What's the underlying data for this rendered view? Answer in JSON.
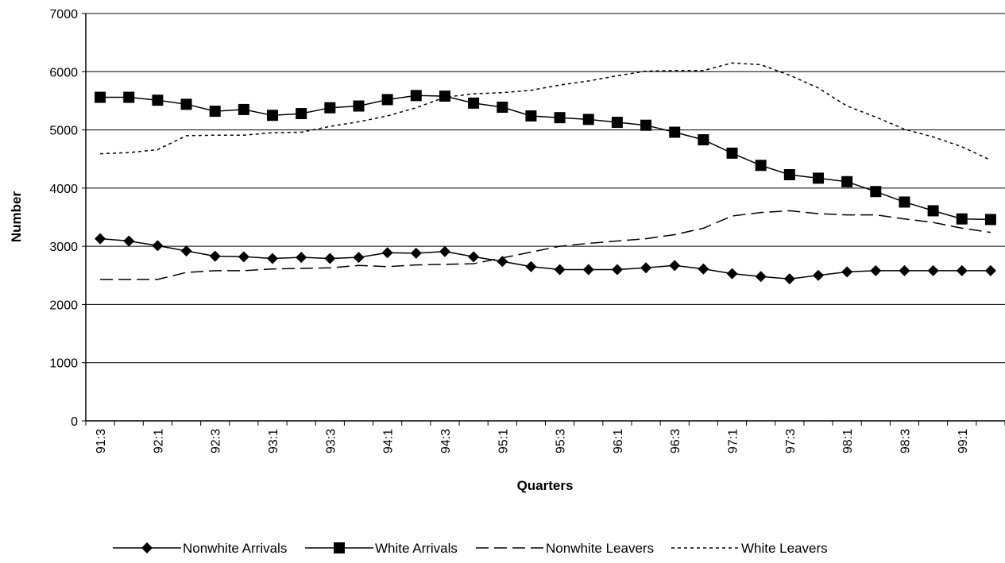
{
  "chart_data": {
    "type": "line",
    "title": "",
    "xlabel": "Quarters",
    "ylabel": "Number",
    "ylim": [
      0,
      7000
    ],
    "yticks": [
      0,
      1000,
      2000,
      3000,
      4000,
      5000,
      6000,
      7000
    ],
    "grid": "horizontal",
    "legend_position": "bottom",
    "x": [
      "91:3",
      "91:4",
      "92:1",
      "92:2",
      "92:3",
      "92:4",
      "93:1",
      "93:2",
      "93:3",
      "93:4",
      "94:1",
      "94:2",
      "94:3",
      "94:4",
      "95:1",
      "95:2",
      "95:3",
      "95:4",
      "96:1",
      "96:2",
      "96:3",
      "96:4",
      "97:1",
      "97:2",
      "97:3",
      "97:4",
      "98:1",
      "98:2",
      "98:3",
      "98:4",
      "99:1",
      "99:2"
    ],
    "x_tick_labels": [
      "91:3",
      "92:1",
      "92:3",
      "93:1",
      "93:3",
      "94:1",
      "94:3",
      "95:1",
      "95:3",
      "96:1",
      "96:3",
      "97:1",
      "97:3",
      "98:1",
      "98:3",
      "99:1"
    ],
    "series": [
      {
        "name": "Nonwhite Arrivals",
        "style": "solid-diamond",
        "color": "#000000",
        "values": [
          3130,
          3090,
          3010,
          2920,
          2830,
          2820,
          2790,
          2810,
          2790,
          2810,
          2890,
          2880,
          2910,
          2820,
          2740,
          2650,
          2600,
          2600,
          2600,
          2630,
          2670,
          2610,
          2530,
          2480,
          2440,
          2500,
          2560,
          2580,
          2580,
          2580,
          2580,
          2580
        ]
      },
      {
        "name": "White Arrivals",
        "style": "solid-square",
        "color": "#000000",
        "values": [
          5560,
          5560,
          5510,
          5440,
          5320,
          5350,
          5250,
          5280,
          5380,
          5410,
          5520,
          5590,
          5580,
          5460,
          5390,
          5240,
          5210,
          5180,
          5130,
          5080,
          4960,
          4830,
          4600,
          4390,
          4230,
          4170,
          4110,
          3940,
          3760,
          3610,
          3470,
          3460
        ]
      },
      {
        "name": "Nonwhite Leavers",
        "style": "long-dash",
        "color": "#000000",
        "values": [
          2430,
          2430,
          2430,
          2550,
          2580,
          2580,
          2610,
          2620,
          2630,
          2670,
          2650,
          2680,
          2690,
          2700,
          2800,
          2900,
          3000,
          3050,
          3090,
          3130,
          3200,
          3310,
          3520,
          3580,
          3610,
          3560,
          3540,
          3540,
          3470,
          3410,
          3310,
          3240
        ]
      },
      {
        "name": "White Leavers",
        "style": "short-dash",
        "color": "#000000",
        "values": [
          4590,
          4610,
          4660,
          4900,
          4910,
          4910,
          4950,
          4960,
          5060,
          5140,
          5240,
          5380,
          5560,
          5620,
          5640,
          5680,
          5770,
          5840,
          5930,
          6010,
          6020,
          6020,
          6150,
          6120,
          5940,
          5720,
          5410,
          5220,
          5010,
          4880,
          4710,
          4480
        ]
      }
    ]
  }
}
